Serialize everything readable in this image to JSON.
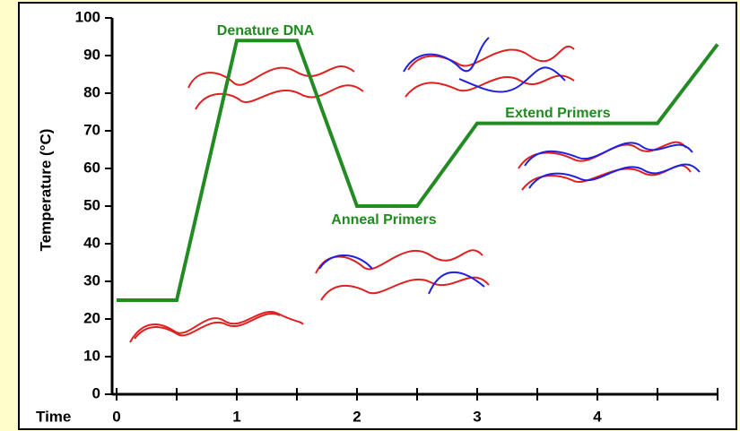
{
  "chart_data": {
    "type": "line",
    "x_label": "Time",
    "y_label": "Temperature (°C)",
    "x": [
      0,
      0.5,
      1,
      1.5,
      2,
      2.5,
      3,
      4.5,
      5
    ],
    "series": [
      {
        "name": null,
        "color": "#228b22",
        "values": [
          25,
          25,
          94,
          94,
          50,
          50,
          72,
          72,
          93
        ]
      }
    ],
    "xlim": [
      0,
      5
    ],
    "ylim": [
      0,
      100
    ],
    "xticks": [
      0,
      {
        "value": 0.5,
        "label": null
      },
      1,
      {
        "value": 1.5,
        "label": null
      },
      2,
      {
        "value": 2.5,
        "label": null
      },
      3,
      {
        "value": 3.5,
        "label": null
      },
      4,
      {
        "value": 4.5,
        "label": null
      },
      {
        "value": 5,
        "label": null
      }
    ],
    "yticks": [
      0,
      10,
      20,
      30,
      40,
      50,
      60,
      70,
      80,
      90,
      100
    ],
    "annotations": [
      "Denature DNA",
      "Anneal Primers",
      "Extend Primers"
    ]
  }
}
